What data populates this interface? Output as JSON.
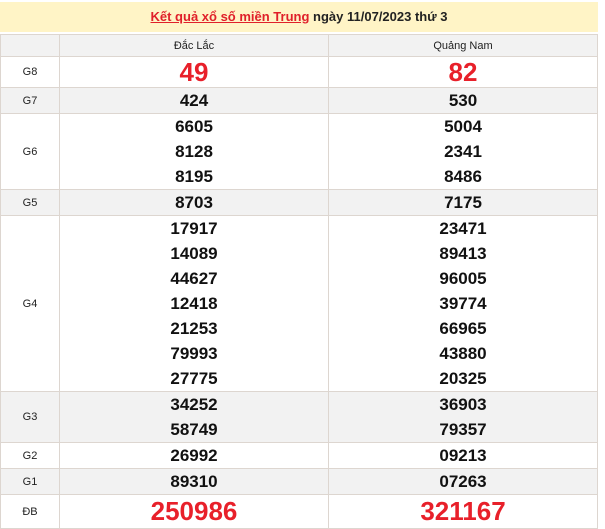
{
  "title": {
    "link": "Kết quả xổ số miền Trung",
    "rest": " ngày 11/07/2023 thứ 3"
  },
  "columns": [
    "",
    "Đắc Lắc",
    "Quảng Nam"
  ],
  "colors": {
    "accent": "#e8202a",
    "title_bg": "#fff4c6"
  },
  "rows": [
    {
      "label": "G8",
      "a": [
        "49"
      ],
      "b": [
        "82"
      ]
    },
    {
      "label": "G7",
      "a": [
        "424"
      ],
      "b": [
        "530"
      ]
    },
    {
      "label": "G6",
      "a": [
        "6605",
        "8128",
        "8195"
      ],
      "b": [
        "5004",
        "2341",
        "8486"
      ]
    },
    {
      "label": "G5",
      "a": [
        "8703"
      ],
      "b": [
        "7175"
      ]
    },
    {
      "label": "G4",
      "a": [
        "17917",
        "14089",
        "44627",
        "12418",
        "21253",
        "79993",
        "27775"
      ],
      "b": [
        "23471",
        "89413",
        "96005",
        "39774",
        "66965",
        "43880",
        "20325"
      ]
    },
    {
      "label": "G3",
      "a": [
        "34252",
        "58749"
      ],
      "b": [
        "36903",
        "79357"
      ]
    },
    {
      "label": "G2",
      "a": [
        "26992"
      ],
      "b": [
        "09213"
      ]
    },
    {
      "label": "G1",
      "a": [
        "89310"
      ],
      "b": [
        "07263"
      ]
    },
    {
      "label": "ĐB",
      "a": [
        "250986"
      ],
      "b": [
        "321167"
      ]
    }
  ]
}
